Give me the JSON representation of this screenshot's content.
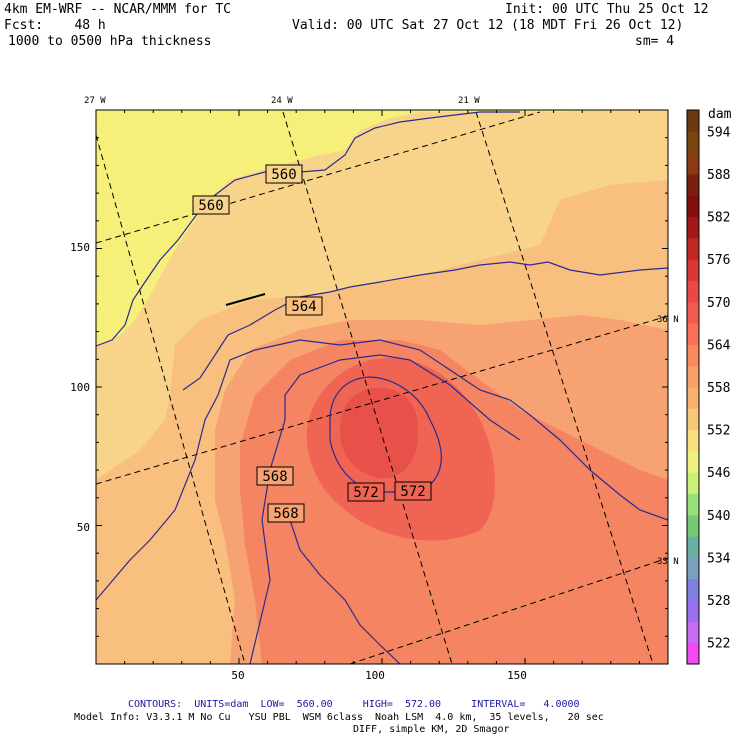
{
  "header": {
    "model": "4km EM-WRF -- NCAR/MMM for TC",
    "init": "Init: 00 UTC Thu 25 Oct 12",
    "fcst": "Fcst:    48 h",
    "valid": "Valid: 00 UTC Sat 27 Oct 12 (18 MDT Fri 26 Oct 12)",
    "field": "1000 to 0500 hPa thickness",
    "smooth": "sm= 4"
  },
  "footer": {
    "contours_label": "CONTOURS:  UNITS=dam  LOW=  560.00     HIGH=  572.00     INTERVAL=   4.0000",
    "model_info": "Model Info: V3.3.1 M No Cu   YSU PBL  WSM 6class  Noah LSM  4.0 km,  35 levels,   20 sec",
    "diff_info": "DIFF, simple KM, 2D Smagor"
  },
  "chart_data": {
    "type": "heatmap",
    "title": "1000 to 0500 hPa thickness",
    "units": "dam",
    "x_ticks": [
      50,
      100,
      150
    ],
    "y_ticks": [
      50,
      100,
      150
    ],
    "xlim": [
      0,
      200
    ],
    "ylim": [
      0,
      200
    ],
    "lon_labels": [
      "27 W",
      "24 W",
      "21 W"
    ],
    "lat_labels": [
      "36 N",
      "33 N"
    ],
    "contours": {
      "units": "dam",
      "low": 560.0,
      "high": 572.0,
      "interval": 4.0
    },
    "contour_labels": [
      "560",
      "560",
      "564",
      "568",
      "568",
      "572",
      "572"
    ],
    "colorbar": {
      "unit_label": "dam",
      "levels": [
        522,
        528,
        534,
        540,
        546,
        552,
        558,
        564,
        570,
        576,
        582,
        588,
        594
      ],
      "colors": [
        "#f04af0",
        "#c66df0",
        "#9a6ff0",
        "#8080e0",
        "#7aa0c0",
        "#6ab0a0",
        "#78c878",
        "#9ae07a",
        "#c8f07a",
        "#f0f080",
        "#f8e080",
        "#f8c87a",
        "#f8b070",
        "#f8a068",
        "#f88a60",
        "#f87058",
        "#f05a50",
        "#e84848",
        "#d83838",
        "#c02828",
        "#a01818",
        "#801010",
        "#7a2010",
        "#8a3a14",
        "#7a4410",
        "#6a3a10"
      ]
    },
    "fill_colors": {
      "t558": "#f6f07a",
      "t561": "#f8d48a",
      "t564": "#f8bf7e",
      "t567": "#f7a272",
      "t570": "#f48462",
      "t573": "#ef6452",
      "t575": "#e8504a"
    }
  }
}
